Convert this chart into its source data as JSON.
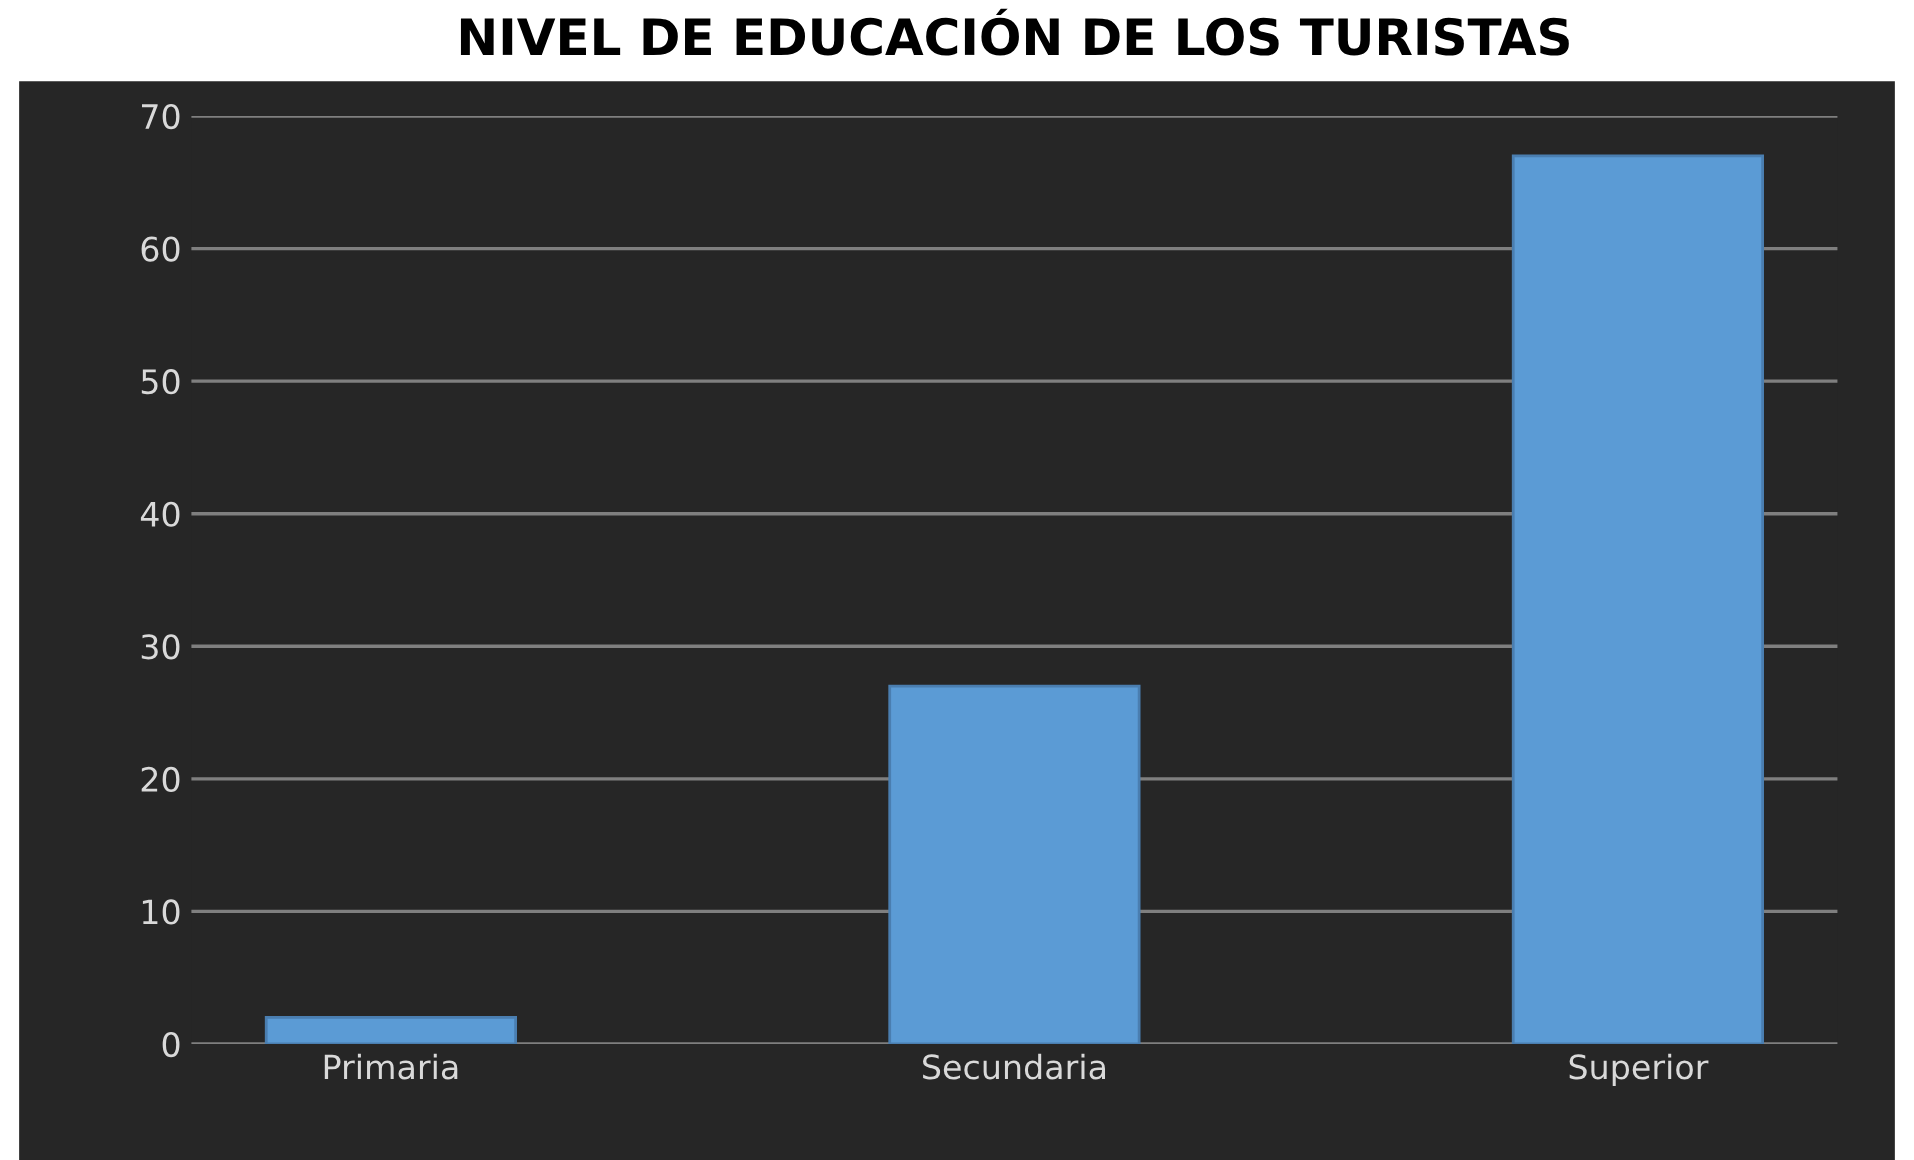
{
  "chart_data": {
    "type": "bar",
    "title": "NIVEL DE EDUCACIÓN DE LOS TURISTAS",
    "categories": [
      "Primaria",
      "Secundaria",
      "Superior"
    ],
    "values": [
      2,
      27,
      67
    ],
    "color": "#5b9bd5",
    "ylim": [
      0,
      70
    ],
    "yticks": [
      0,
      10,
      20,
      30,
      40,
      50,
      60,
      70
    ],
    "grid": "y"
  }
}
